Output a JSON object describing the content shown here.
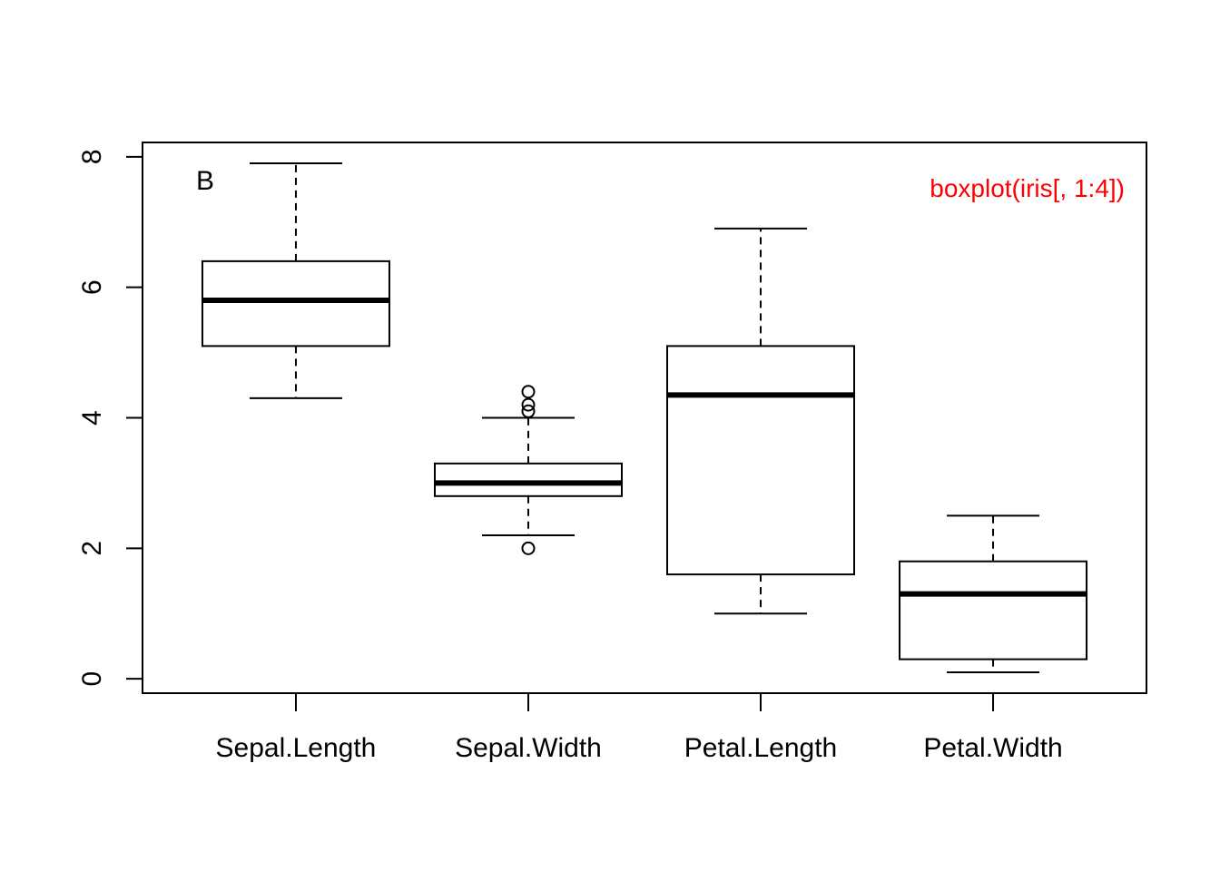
{
  "chart_data": {
    "type": "boxplot",
    "categories": [
      "Sepal.Length",
      "Sepal.Width",
      "Petal.Length",
      "Petal.Width"
    ],
    "boxes": [
      {
        "name": "Sepal.Length",
        "whisker_low": 4.3,
        "q1": 5.1,
        "median": 5.8,
        "q3": 6.4,
        "whisker_high": 7.9,
        "outliers": []
      },
      {
        "name": "Sepal.Width",
        "whisker_low": 2.2,
        "q1": 2.8,
        "median": 3.0,
        "q3": 3.3,
        "whisker_high": 4.0,
        "outliers": [
          2.0,
          4.1,
          4.2,
          4.4
        ]
      },
      {
        "name": "Petal.Length",
        "whisker_low": 1.0,
        "q1": 1.6,
        "median": 4.35,
        "q3": 5.1,
        "whisker_high": 6.9,
        "outliers": []
      },
      {
        "name": "Petal.Width",
        "whisker_low": 0.1,
        "q1": 0.3,
        "median": 1.3,
        "q3": 1.8,
        "whisker_high": 2.5,
        "outliers": []
      }
    ],
    "y_ticks": [
      0,
      2,
      4,
      6,
      8
    ],
    "y_tick_labels": [
      "0",
      "2",
      "4",
      "6",
      "8"
    ],
    "ylim": [
      -0.22,
      8.22
    ],
    "panel_label": "B",
    "annotation": {
      "text": "boxplot(iris[, 1:4])",
      "color": "#ff0000"
    },
    "grid": false
  }
}
